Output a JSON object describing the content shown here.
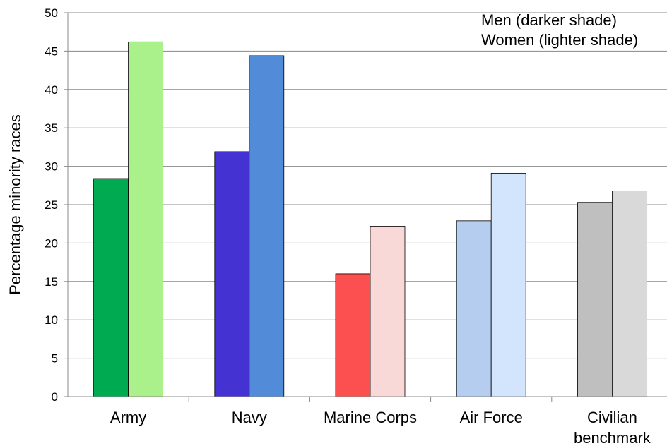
{
  "chart_data": {
    "type": "bar",
    "ylabel": "Percentage minority races",
    "ylim": [
      0,
      50
    ],
    "yticks": [
      0,
      5,
      10,
      15,
      20,
      25,
      30,
      35,
      40,
      45,
      50
    ],
    "grid": true,
    "legend_position": "top-right",
    "legend_lines": [
      "Men (darker shade)",
      "Women (lighter shade)"
    ],
    "categories": [
      {
        "label_lines": [
          "Army"
        ],
        "men": 28.4,
        "women": 46.2,
        "men_color": "#00aa50",
        "women_color": "#aaf18b"
      },
      {
        "label_lines": [
          "Navy"
        ],
        "men": 31.9,
        "women": 44.4,
        "men_color": "#4432d2",
        "women_color": "#528bd8"
      },
      {
        "label_lines": [
          "Marine Corps"
        ],
        "men": 16.0,
        "women": 22.2,
        "men_color": "#fc4f50",
        "women_color": "#f9d9d7"
      },
      {
        "label_lines": [
          "Air Force"
        ],
        "men": 22.9,
        "women": 29.1,
        "men_color": "#b5cdee",
        "women_color": "#d2e5fc"
      },
      {
        "label_lines": [
          "Civilian",
          "benchmark"
        ],
        "men": 25.3,
        "women": 26.8,
        "men_color": "#bfbfbf",
        "women_color": "#d9d9d9"
      }
    ]
  }
}
